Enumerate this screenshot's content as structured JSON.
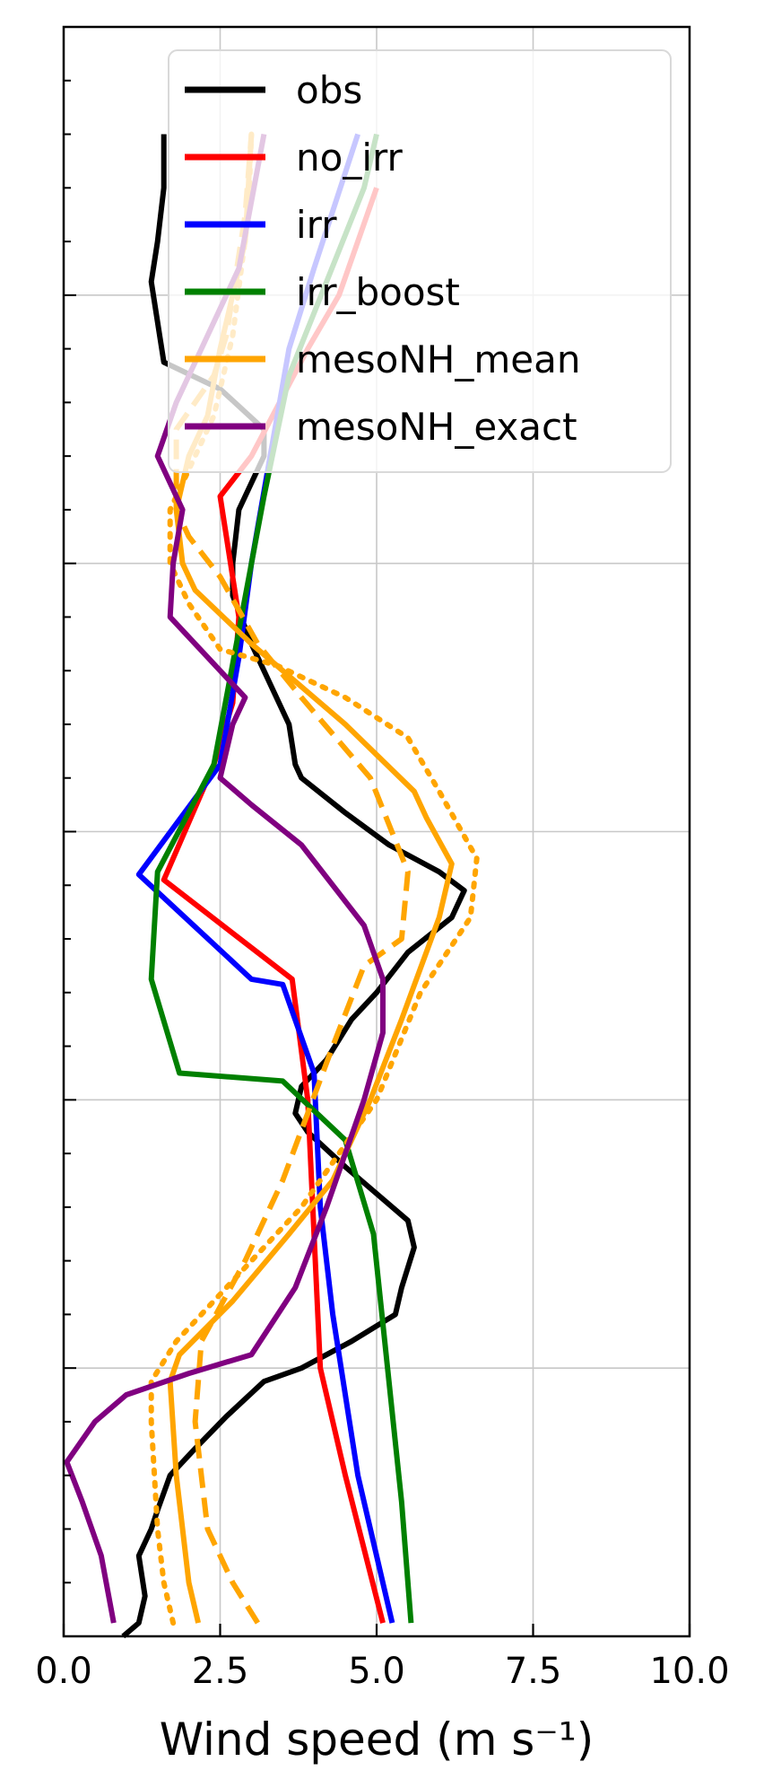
{
  "chart_data": {
    "type": "line",
    "title": "",
    "xlabel": "Wind speed (m s⁻¹)",
    "ylabel": "",
    "xlim": [
      0,
      10
    ],
    "ylim": [
      0,
      600
    ],
    "x_ticks": [
      "0.0",
      "2.5",
      "5.0",
      "7.5",
      "10.0"
    ],
    "x_tick_values": [
      0,
      2.5,
      5,
      7.5,
      10
    ],
    "y_major_ticks": [
      0,
      100,
      200,
      300,
      400,
      500
    ],
    "y_minor_step": 20,
    "grid": true,
    "legend_position": "top",
    "series": [
      {
        "name": "obs",
        "color": "#000000",
        "style": "solid",
        "points": [
          [
            0.95,
            0
          ],
          [
            1.2,
            5
          ],
          [
            1.3,
            15
          ],
          [
            1.2,
            30
          ],
          [
            1.4,
            40
          ],
          [
            1.5,
            47
          ],
          [
            1.7,
            60
          ],
          [
            2.1,
            70
          ],
          [
            2.6,
            82
          ],
          [
            3.2,
            95
          ],
          [
            3.8,
            100
          ],
          [
            4.6,
            110
          ],
          [
            5.3,
            120
          ],
          [
            5.4,
            130
          ],
          [
            5.6,
            145
          ],
          [
            5.5,
            155
          ],
          [
            5.0,
            165
          ],
          [
            4.5,
            175
          ],
          [
            3.9,
            188
          ],
          [
            3.7,
            195
          ],
          [
            3.8,
            205
          ],
          [
            4.2,
            215
          ],
          [
            4.6,
            230
          ],
          [
            5.0,
            240
          ],
          [
            5.5,
            255
          ],
          [
            6.2,
            268
          ],
          [
            6.4,
            278
          ],
          [
            6.0,
            285
          ],
          [
            5.2,
            295
          ],
          [
            4.5,
            307
          ],
          [
            3.8,
            320
          ],
          [
            3.7,
            325
          ],
          [
            3.6,
            340
          ],
          [
            3.0,
            370
          ],
          [
            2.7,
            388
          ],
          [
            2.7,
            400
          ],
          [
            2.8,
            420
          ],
          [
            3.2,
            440
          ],
          [
            3.2,
            450
          ],
          [
            2.5,
            465
          ],
          [
            1.6,
            475
          ],
          [
            1.5,
            490
          ],
          [
            1.4,
            505
          ],
          [
            1.5,
            520
          ],
          [
            1.6,
            540
          ],
          [
            1.6,
            560
          ]
        ]
      },
      {
        "name": "no_irr",
        "color": "#ff0000",
        "style": "solid",
        "points": [
          [
            5.1,
            5
          ],
          [
            4.5,
            60
          ],
          [
            4.1,
            100
          ],
          [
            4.0,
            150
          ],
          [
            3.9,
            200
          ],
          [
            3.65,
            245
          ],
          [
            1.6,
            282
          ],
          [
            2.4,
            325
          ],
          [
            2.7,
            348
          ],
          [
            2.8,
            380
          ],
          [
            2.5,
            425
          ],
          [
            3.0,
            440
          ],
          [
            3.9,
            480
          ],
          [
            4.4,
            500
          ],
          [
            5.0,
            540
          ]
        ]
      },
      {
        "name": "irr",
        "color": "#0000ff",
        "style": "solid",
        "points": [
          [
            5.25,
            5
          ],
          [
            4.7,
            60
          ],
          [
            4.3,
            120
          ],
          [
            4.1,
            160
          ],
          [
            4.0,
            210
          ],
          [
            3.5,
            243
          ],
          [
            3.0,
            245
          ],
          [
            1.2,
            284
          ],
          [
            2.5,
            325
          ],
          [
            2.8,
            365
          ],
          [
            3.0,
            400
          ],
          [
            3.3,
            440
          ],
          [
            3.6,
            480
          ],
          [
            4.0,
            510
          ],
          [
            4.7,
            560
          ]
        ]
      },
      {
        "name": "irr_boost",
        "color": "#008000",
        "style": "solid",
        "points": [
          [
            5.55,
            5
          ],
          [
            5.4,
            50
          ],
          [
            4.95,
            150
          ],
          [
            4.5,
            185
          ],
          [
            3.5,
            207
          ],
          [
            1.85,
            210
          ],
          [
            1.4,
            245
          ],
          [
            1.5,
            285
          ],
          [
            2.4,
            325
          ],
          [
            3.2,
            425
          ],
          [
            3.6,
            470
          ],
          [
            4.8,
            540
          ],
          [
            5.0,
            560
          ]
        ]
      },
      {
        "name": "mesoNH_mean",
        "color": "#ffa500",
        "style": "solid",
        "points": [
          [
            2.15,
            5
          ],
          [
            2.0,
            20
          ],
          [
            1.8,
            60
          ],
          [
            1.7,
            95
          ],
          [
            1.85,
            105
          ],
          [
            2.7,
            125
          ],
          [
            3.6,
            150
          ],
          [
            4.3,
            170
          ],
          [
            4.9,
            200
          ],
          [
            5.4,
            230
          ],
          [
            6.0,
            268
          ],
          [
            6.2,
            288
          ],
          [
            5.8,
            305
          ],
          [
            5.6,
            315
          ],
          [
            4.5,
            340
          ],
          [
            3.6,
            358
          ],
          [
            3.0,
            370
          ],
          [
            2.1,
            390
          ],
          [
            1.9,
            400
          ],
          [
            1.8,
            420
          ],
          [
            2.0,
            440
          ],
          [
            2.3,
            455
          ],
          [
            2.5,
            480
          ],
          [
            2.9,
            520
          ],
          [
            3.0,
            560
          ]
        ]
      },
      {
        "name": "mesoNH_mean_dashed",
        "color": "#ffa500",
        "style": "dashed",
        "points": [
          [
            3.1,
            5
          ],
          [
            2.7,
            20
          ],
          [
            2.3,
            40
          ],
          [
            2.1,
            80
          ],
          [
            2.2,
            110
          ],
          [
            2.9,
            140
          ],
          [
            3.5,
            170
          ],
          [
            4.3,
            220
          ],
          [
            4.8,
            250
          ],
          [
            5.4,
            260
          ],
          [
            5.5,
            285
          ],
          [
            4.9,
            320
          ],
          [
            3.8,
            350
          ],
          [
            3.1,
            370
          ],
          [
            2.5,
            395
          ],
          [
            2.0,
            410
          ],
          [
            1.8,
            420
          ],
          [
            1.8,
            450
          ],
          [
            2.4,
            470
          ],
          [
            2.6,
            485
          ],
          [
            2.9,
            530
          ],
          [
            3.0,
            560
          ]
        ]
      },
      {
        "name": "mesoNH_mean_dotted",
        "color": "#ffa500",
        "style": "dotted",
        "points": [
          [
            1.75,
            5
          ],
          [
            1.6,
            20
          ],
          [
            1.5,
            40
          ],
          [
            1.4,
            80
          ],
          [
            1.4,
            95
          ],
          [
            1.8,
            110
          ],
          [
            2.6,
            130
          ],
          [
            3.8,
            160
          ],
          [
            5.0,
            200
          ],
          [
            5.7,
            240
          ],
          [
            6.5,
            268
          ],
          [
            6.6,
            290
          ],
          [
            6.0,
            315
          ],
          [
            5.5,
            335
          ],
          [
            4.5,
            350
          ],
          [
            3.4,
            362
          ],
          [
            2.5,
            368
          ],
          [
            2.0,
            385
          ],
          [
            1.7,
            400
          ],
          [
            1.7,
            420
          ],
          [
            2.1,
            440
          ],
          [
            2.4,
            455
          ],
          [
            2.7,
            485
          ],
          [
            2.95,
            530
          ],
          [
            3.0,
            560
          ]
        ]
      },
      {
        "name": "mesoNH_exact",
        "color": "#800080",
        "style": "solid",
        "points": [
          [
            0.8,
            5
          ],
          [
            0.6,
            30
          ],
          [
            0.3,
            50
          ],
          [
            0.05,
            65
          ],
          [
            0.5,
            80
          ],
          [
            1.0,
            90
          ],
          [
            2.0,
            98
          ],
          [
            3.0,
            105
          ],
          [
            3.7,
            130
          ],
          [
            4.2,
            160
          ],
          [
            4.8,
            200
          ],
          [
            5.1,
            225
          ],
          [
            5.1,
            245
          ],
          [
            4.8,
            265
          ],
          [
            3.8,
            295
          ],
          [
            3.0,
            310
          ],
          [
            2.5,
            320
          ],
          [
            2.7,
            340
          ],
          [
            2.9,
            350
          ],
          [
            2.5,
            360
          ],
          [
            2.1,
            370
          ],
          [
            1.7,
            380
          ],
          [
            1.75,
            400
          ],
          [
            1.9,
            420
          ],
          [
            1.5,
            440
          ],
          [
            1.8,
            460
          ],
          [
            2.2,
            480
          ],
          [
            2.8,
            510
          ],
          [
            3.2,
            560
          ]
        ]
      }
    ],
    "legend": [
      {
        "label": "obs",
        "color": "#000000"
      },
      {
        "label": "no_irr",
        "color": "#ff0000"
      },
      {
        "label": "irr",
        "color": "#0000ff"
      },
      {
        "label": "irr_boost",
        "color": "#008000"
      },
      {
        "label": "mesoNH_mean",
        "color": "#ffa500"
      },
      {
        "label": "mesoNH_exact",
        "color": "#800080"
      }
    ]
  }
}
